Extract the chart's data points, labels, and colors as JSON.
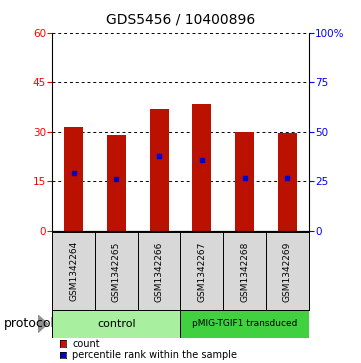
{
  "title": "GDS5456 / 10400896",
  "samples": [
    "GSM1342264",
    "GSM1342265",
    "GSM1342266",
    "GSM1342267",
    "GSM1342268",
    "GSM1342269"
  ],
  "counts": [
    31.5,
    29.0,
    37.0,
    38.5,
    30.0,
    29.5
  ],
  "percentile_ranks": [
    17.5,
    15.5,
    22.5,
    21.5,
    16.0,
    16.0
  ],
  "ylim_left": [
    0,
    60
  ],
  "ylim_right": [
    0,
    100
  ],
  "yticks_left": [
    0,
    15,
    30,
    45,
    60
  ],
  "yticks_right": [
    0,
    25,
    50,
    75,
    100
  ],
  "ytick_labels_right": [
    "0",
    "25",
    "50",
    "75",
    "100%"
  ],
  "groups": [
    {
      "label": "control",
      "color": "#a8f0a0",
      "start": 0,
      "end": 2
    },
    {
      "label": "pMIG-TGIF1 transduced",
      "color": "#40d040",
      "start": 3,
      "end": 5
    }
  ],
  "bar_color": "#bb1100",
  "marker_color": "#0000cc",
  "bar_width": 0.45,
  "bg_color": "#d8d8d8",
  "plot_bg": "#ffffff",
  "legend_color_count": "#cc1100",
  "legend_color_pct": "#0000cc",
  "title_fontsize": 10,
  "tick_fontsize": 7.5,
  "sample_fontsize": 6.5,
  "legend_fontsize": 7,
  "protocol_fontsize": 9
}
